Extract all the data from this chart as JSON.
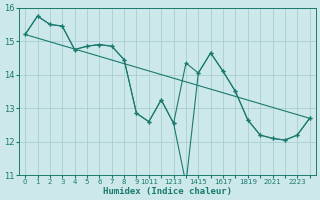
{
  "xlabel": "Humidex (Indice chaleur)",
  "x_values": [
    0,
    1,
    2,
    3,
    4,
    5,
    6,
    7,
    8,
    9,
    10,
    11,
    12,
    13,
    14,
    15,
    16,
    17,
    18,
    19,
    20,
    21,
    22,
    23
  ],
  "series1": [
    15.2,
    15.75,
    15.5,
    15.45,
    14.75,
    14.85,
    14.9,
    14.85,
    14.45,
    12.85,
    12.6,
    13.25,
    12.55,
    14.35,
    14.05,
    14.65,
    14.1,
    13.5,
    12.65,
    12.2,
    12.1,
    12.05,
    12.2,
    12.7
  ],
  "series2": [
    15.2,
    15.75,
    15.5,
    15.45,
    14.75,
    14.85,
    14.9,
    14.85,
    14.45,
    12.85,
    12.6,
    13.25,
    12.55,
    10.75,
    14.05,
    14.65,
    14.1,
    13.5,
    12.65,
    12.2,
    12.1,
    12.05,
    12.2,
    12.7
  ],
  "trend_x": [
    0,
    23
  ],
  "trend_y": [
    15.2,
    12.7
  ],
  "line_color": "#1a7a6e",
  "bg_color": "#cce8ea",
  "grid_color": "#aacfd2",
  "ylim": [
    11,
    16
  ],
  "yticks": [
    11,
    12,
    13,
    14,
    15,
    16
  ],
  "xlim": [
    -0.5,
    23.5
  ],
  "xtick_labels": [
    "0",
    "1",
    "2",
    "3",
    "4",
    "5",
    "6",
    "7",
    "8",
    "9",
    "1011",
    "1213",
    "1415",
    "1617",
    "1819",
    "2021",
    "2223"
  ]
}
